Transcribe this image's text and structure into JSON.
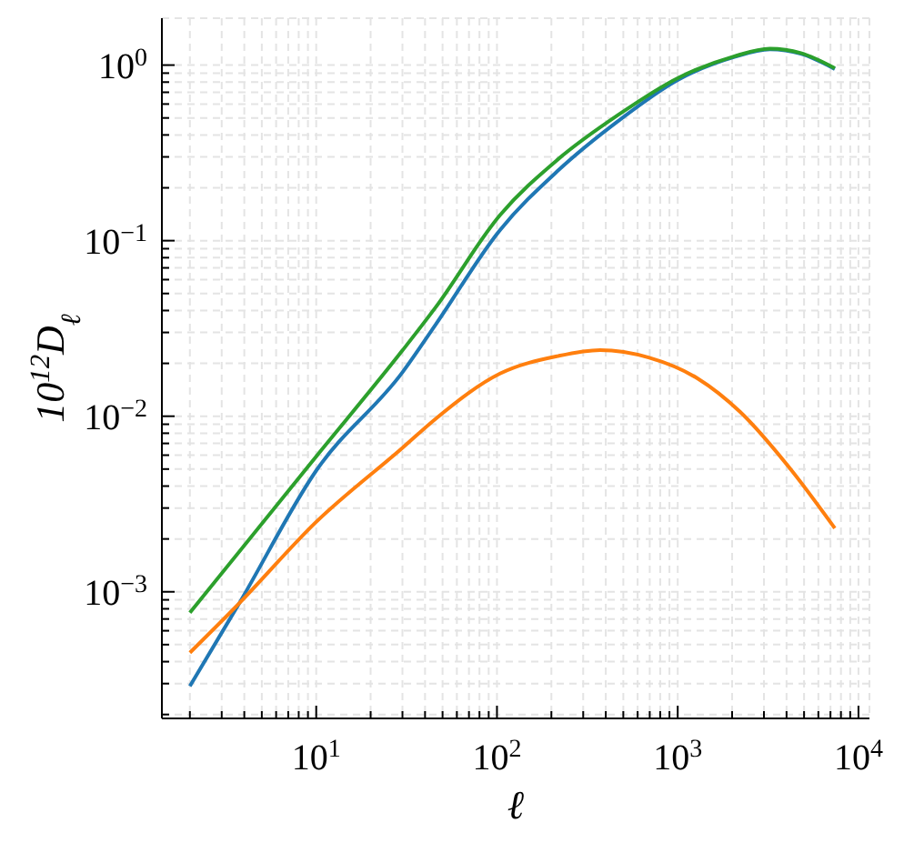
{
  "chart_data": {
    "type": "line",
    "xlabel": "ℓ",
    "ylabel": "10$^{12}$D$_{ℓ}$",
    "log": "xy",
    "grid": true,
    "xlim": [
      1.4,
      11500
    ],
    "ylim": [
      0.00019,
      1.85
    ],
    "xticks": [
      {
        "value": 2,
        "label": null
      },
      {
        "value": 3,
        "label": null
      },
      {
        "value": 4,
        "label": null
      },
      {
        "value": 5,
        "label": null
      },
      {
        "value": 6,
        "label": null
      },
      {
        "value": 7,
        "label": null
      },
      {
        "value": 8,
        "label": null
      },
      {
        "value": 9,
        "label": null
      },
      {
        "value": 10,
        "label": "10$^{1}$"
      },
      {
        "value": 20,
        "label": null
      },
      {
        "value": 30,
        "label": null
      },
      {
        "value": 40,
        "label": null
      },
      {
        "value": 50,
        "label": null
      },
      {
        "value": 60,
        "label": null
      },
      {
        "value": 70,
        "label": null
      },
      {
        "value": 80,
        "label": null
      },
      {
        "value": 90,
        "label": null
      },
      {
        "value": 100,
        "label": "10$^{2}$"
      },
      {
        "value": 200,
        "label": null
      },
      {
        "value": 300,
        "label": null
      },
      {
        "value": 400,
        "label": null
      },
      {
        "value": 500,
        "label": null
      },
      {
        "value": 600,
        "label": null
      },
      {
        "value": 700,
        "label": null
      },
      {
        "value": 800,
        "label": null
      },
      {
        "value": 900,
        "label": null
      },
      {
        "value": 1000,
        "label": "10$^{3}$"
      },
      {
        "value": 2000,
        "label": null
      },
      {
        "value": 3000,
        "label": null
      },
      {
        "value": 4000,
        "label": null
      },
      {
        "value": 5000,
        "label": null
      },
      {
        "value": 6000,
        "label": null
      },
      {
        "value": 7000,
        "label": null
      },
      {
        "value": 8000,
        "label": null
      },
      {
        "value": 9000,
        "label": null
      },
      {
        "value": 10000,
        "label": "10$^{4}$"
      }
    ],
    "yticks": [
      {
        "value": 0.0002,
        "label": null
      },
      {
        "value": 0.0003,
        "label": null
      },
      {
        "value": 0.0004,
        "label": null
      },
      {
        "value": 0.0005,
        "label": null
      },
      {
        "value": 0.0006,
        "label": null
      },
      {
        "value": 0.0007,
        "label": null
      },
      {
        "value": 0.0008,
        "label": null
      },
      {
        "value": 0.0009,
        "label": null
      },
      {
        "value": 0.001,
        "label": "10$^{−3}$"
      },
      {
        "value": 0.002,
        "label": null
      },
      {
        "value": 0.003,
        "label": null
      },
      {
        "value": 0.004,
        "label": null
      },
      {
        "value": 0.005,
        "label": null
      },
      {
        "value": 0.006,
        "label": null
      },
      {
        "value": 0.007,
        "label": null
      },
      {
        "value": 0.008,
        "label": null
      },
      {
        "value": 0.009,
        "label": null
      },
      {
        "value": 0.01,
        "label": "10$^{−2}$"
      },
      {
        "value": 0.02,
        "label": null
      },
      {
        "value": 0.03,
        "label": null
      },
      {
        "value": 0.04,
        "label": null
      },
      {
        "value": 0.05,
        "label": null
      },
      {
        "value": 0.06,
        "label": null
      },
      {
        "value": 0.07,
        "label": null
      },
      {
        "value": 0.08,
        "label": null
      },
      {
        "value": 0.09,
        "label": null
      },
      {
        "value": 0.1,
        "label": "10$^{−1}$"
      },
      {
        "value": 0.2,
        "label": null
      },
      {
        "value": 0.3,
        "label": null
      },
      {
        "value": 0.4,
        "label": null
      },
      {
        "value": 0.5,
        "label": null
      },
      {
        "value": 0.6,
        "label": null
      },
      {
        "value": 0.7,
        "label": null
      },
      {
        "value": 0.8,
        "label": null
      },
      {
        "value": 0.9,
        "label": null
      },
      {
        "value": 1,
        "label": "10$^{0}$"
      }
    ],
    "series": [
      {
        "color": "#1f77b4",
        "x": [
          2,
          3.75,
          10,
          30,
          46,
          104,
          217,
          468,
          1016,
          2040,
          3240,
          4800,
          7400
        ],
        "values": [
          0.00029,
          0.00086,
          0.0049,
          0.0178,
          0.0335,
          0.115,
          0.25,
          0.48,
          0.83,
          1.11,
          1.23,
          1.16,
          0.95
        ]
      },
      {
        "color": "#ff7f0e",
        "x": [
          2,
          3.75,
          10,
          30,
          46,
          104,
          217,
          372,
          690,
          1290,
          2210,
          4080,
          7400
        ],
        "values": [
          0.00045,
          0.00086,
          0.0025,
          0.0066,
          0.0097,
          0.0175,
          0.022,
          0.0238,
          0.0216,
          0.0164,
          0.0106,
          0.0052,
          0.0023
        ]
      },
      {
        "color": "#2ca02c",
        "x": [
          2,
          10,
          30,
          46,
          104,
          217,
          468,
          1016,
          2040,
          3240,
          4800,
          7400
        ],
        "values": [
          0.00076,
          0.0059,
          0.0237,
          0.042,
          0.14,
          0.29,
          0.52,
          0.85,
          1.12,
          1.24,
          1.17,
          0.96
        ]
      }
    ]
  }
}
